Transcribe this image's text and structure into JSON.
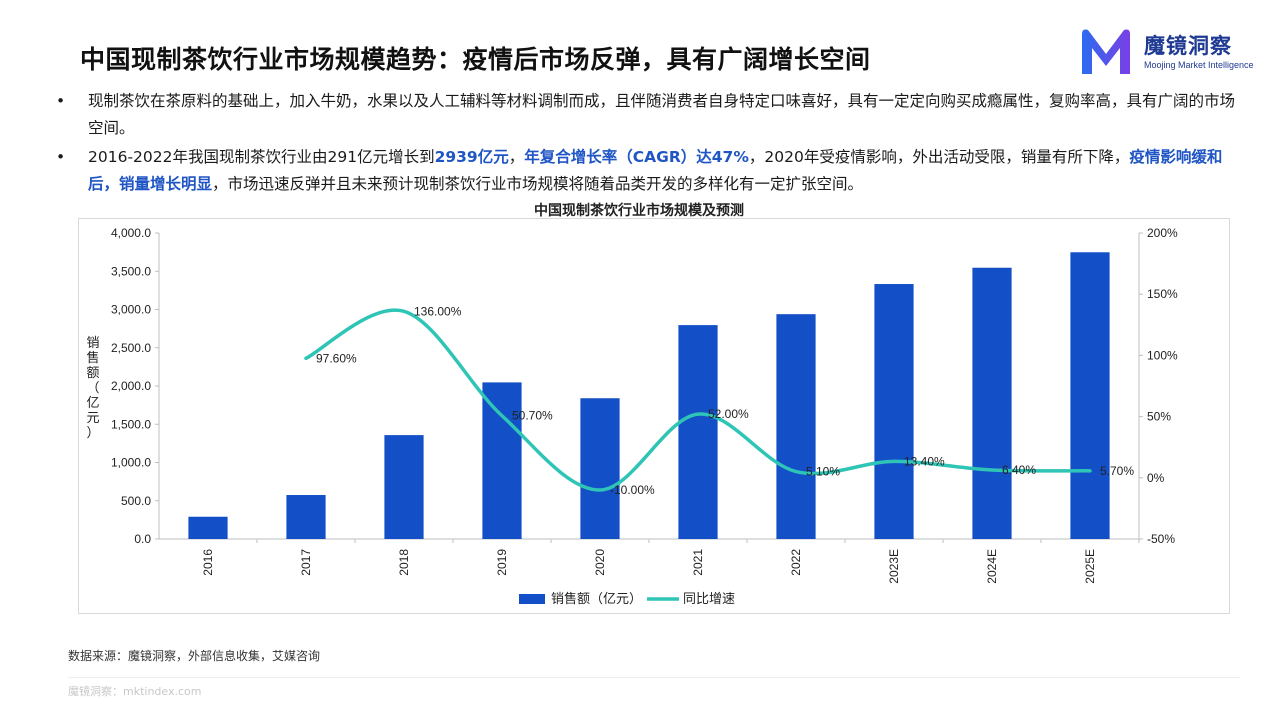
{
  "page": {
    "title": "中国现制茶饮行业市场规模趋势：疫情后市场反弹，具有广阔增长空间"
  },
  "logo": {
    "name": "魔镜洞察",
    "tagline": "Moojing Market Intelligence",
    "colors": {
      "left": "#2b6cf0",
      "right": "#7b3fe4"
    }
  },
  "bullets": [
    {
      "dot": "•",
      "segments": [
        {
          "text": "现制茶饮在茶原料的基础上，加入牛奶，水果以及人工辅料等材料调制而成，且伴随消费者自身特定口味喜好，具有一定定向购买成瘾属性，复购率高，具有广阔的市场空间。",
          "highlight": false
        }
      ]
    },
    {
      "dot": "•",
      "segments": [
        {
          "text": "2016-2022年我国现制茶饮行业由291亿元增长到",
          "highlight": false
        },
        {
          "text": "2939亿元",
          "highlight": true
        },
        {
          "text": "，",
          "highlight": false
        },
        {
          "text": "年复合增长率（CAGR）达47%",
          "highlight": true
        },
        {
          "text": "，2020年受疫情影响，外出活动受限，销量有所下降，",
          "highlight": false
        },
        {
          "text": "疫情影响缓和后，销量增长明显",
          "highlight": true
        },
        {
          "text": "，市场迅速反弹并且未来预计现制茶饮行业市场规模将随着品类开发的多样化有一定扩张空间。",
          "highlight": false
        }
      ]
    }
  ],
  "chart_data": {
    "type": "bar",
    "title": "中国现制茶饮行业市场规模及预测",
    "categories": [
      "2016",
      "2017",
      "2018",
      "2019",
      "2020",
      "2021",
      "2022",
      "2023E",
      "2024E",
      "2025E"
    ],
    "ylabel": "销售额（亿元）",
    "ylim": [
      0,
      4000
    ],
    "y_ticks": [
      "0.0",
      "500.0",
      "1,000.0",
      "1,500.0",
      "2,000.0",
      "2,500.0",
      "3,000.0",
      "3,500.0",
      "4,000.0"
    ],
    "y2lim": [
      -50,
      200
    ],
    "y2_ticks": [
      "-50%",
      "0%",
      "50%",
      "100%",
      "150%",
      "200%"
    ],
    "grid": false,
    "legend_position": "bottom",
    "series": [
      {
        "name": "销售额（亿元）",
        "type": "bar",
        "axis": "left",
        "color": "#1350c8",
        "values": [
          291,
          575,
          1358,
          2047,
          1840,
          2796,
          2939,
          3333,
          3546,
          3748
        ]
      },
      {
        "name": "同比增速",
        "type": "line",
        "axis": "right",
        "color": "#2ec4b6",
        "values": [
          null,
          97.6,
          136.0,
          50.7,
          -10.0,
          52.0,
          5.1,
          13.4,
          6.4,
          5.7
        ],
        "labels": [
          null,
          "97.60%",
          "136.00%",
          "50.70%",
          "-10.00%",
          "52.00%",
          "5.10%",
          "13.40%",
          "6.40%",
          "5.70%"
        ]
      }
    ]
  },
  "source": "数据来源：魔镜洞察，外部信息收集，艾媒咨询",
  "footer": "魔镜洞察：mktindex.com"
}
